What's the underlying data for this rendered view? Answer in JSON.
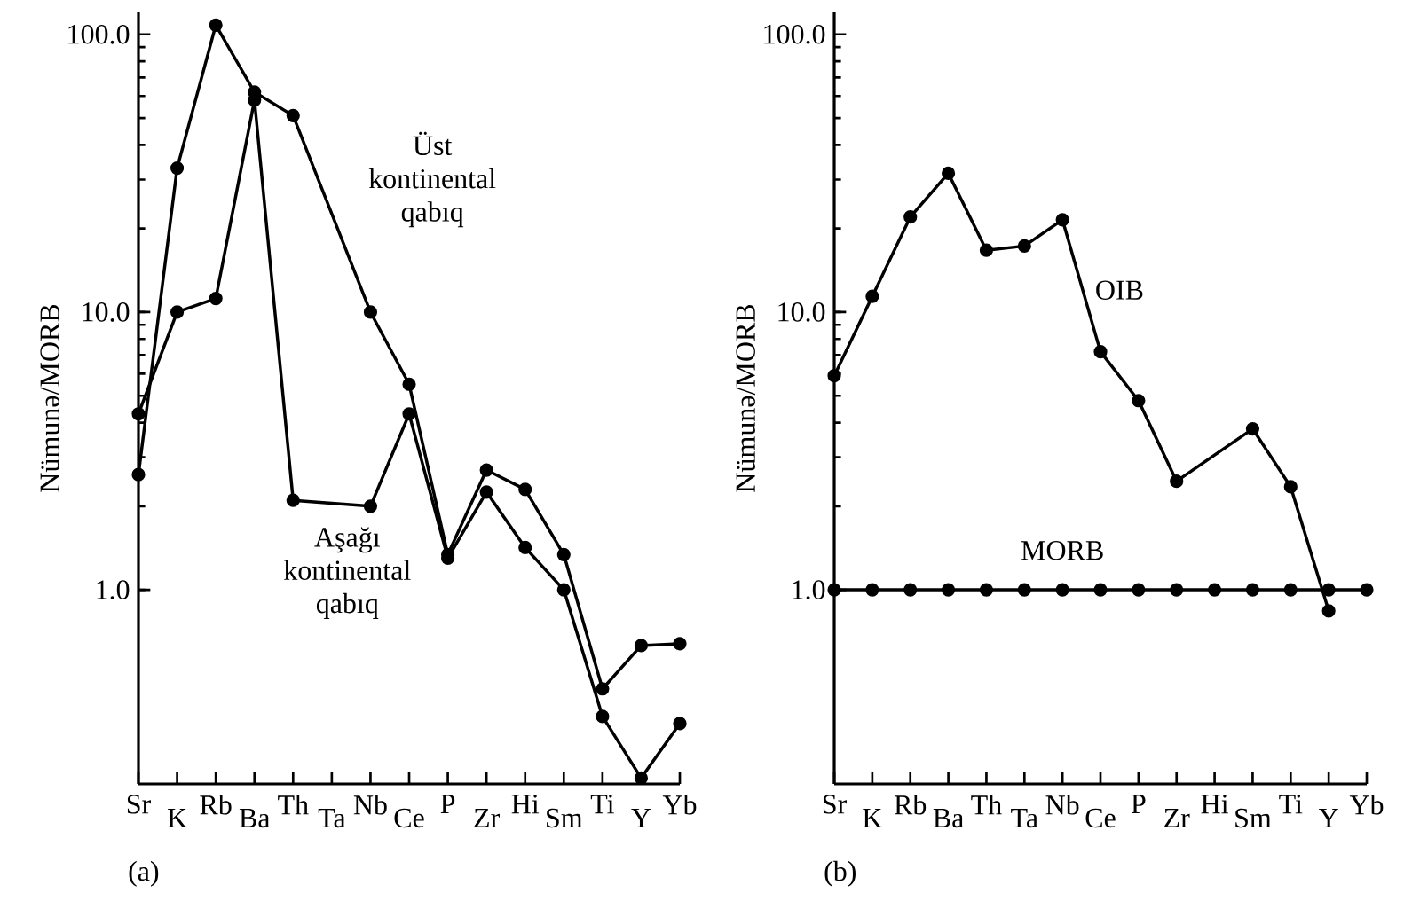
{
  "chart_data": [
    {
      "type": "line",
      "log": true,
      "marker": "circle",
      "ylabel": "Nümunə/MORB",
      "annotations": [
        "(a)"
      ],
      "categories": [
        "Sr",
        "K",
        "Rb",
        "Ba",
        "Th",
        "Ta",
        "Nb",
        "Ce",
        "P",
        "Zr",
        "Hi",
        "Sm",
        "Ti",
        "Y",
        "Yb"
      ],
      "ylim": [
        0.2,
        120
      ],
      "yticks": [
        {
          "value": 1,
          "label": "1.0"
        },
        {
          "value": 10,
          "label": "10.0"
        },
        {
          "value": 100,
          "label": "100.0"
        }
      ],
      "series": [
        {
          "name": "Üst kontinental qabıq",
          "color": "#000000",
          "values": [
            2.6,
            33,
            108,
            62,
            51,
            null,
            10,
            5.5,
            1.34,
            2.7,
            2.3,
            1.34,
            0.44,
            0.63,
            0.64
          ]
        },
        {
          "name": "Aşağı kontinental qabıq",
          "color": "#000000",
          "values": [
            4.3,
            10,
            11.2,
            58,
            2.1,
            null,
            2.0,
            4.3,
            1.3,
            2.25,
            1.42,
            1.0,
            0.35,
            0.21,
            0.33
          ]
        }
      ]
    },
    {
      "type": "line",
      "log": true,
      "marker": "circle",
      "ylabel": "Nümunə/MORB",
      "annotations": [
        "(b)"
      ],
      "categories": [
        "Sr",
        "K",
        "Rb",
        "Ba",
        "Th",
        "Ta",
        "Nb",
        "Ce",
        "P",
        "Zr",
        "Hi",
        "Sm",
        "Ti",
        "Y",
        "Yb"
      ],
      "ylim": [
        0.2,
        120
      ],
      "yticks": [
        {
          "value": 1,
          "label": "1.0"
        },
        {
          "value": 10,
          "label": "10.0"
        },
        {
          "value": 100,
          "label": "100.0"
        }
      ],
      "series": [
        {
          "name": "OIB",
          "color": "#000000",
          "values": [
            5.9,
            11.4,
            22,
            31.6,
            16.7,
            17.3,
            21.5,
            7.2,
            4.8,
            2.46,
            null,
            3.8,
            2.35,
            0.84,
            null
          ]
        },
        {
          "name": "MORB",
          "color": "#000000",
          "values": [
            1,
            1,
            1,
            1,
            1,
            1,
            1,
            1,
            1,
            1,
            1,
            1,
            1,
            1,
            1
          ]
        }
      ]
    }
  ]
}
